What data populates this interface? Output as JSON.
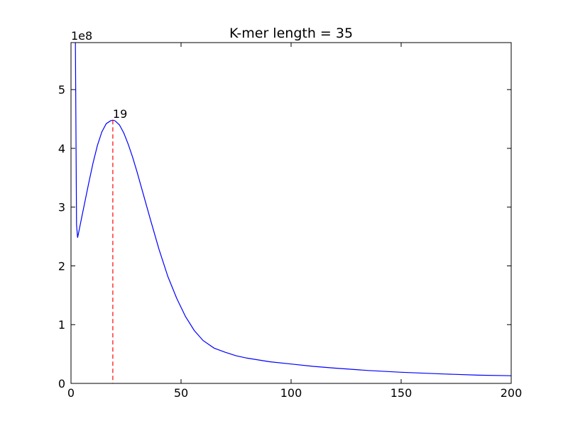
{
  "chart_data": {
    "type": "line",
    "title": "K-mer length = 35",
    "xlabel": "",
    "ylabel": "",
    "y_offset_label": "1e8",
    "xlim": [
      0,
      200
    ],
    "ylim": [
      0,
      5.8
    ],
    "xticks": [
      0,
      50,
      100,
      150,
      200
    ],
    "yticks": [
      0,
      1,
      2,
      3,
      4,
      5
    ],
    "grid": false,
    "series": [
      {
        "color": "#0000ff",
        "x": [
          2,
          2.5,
          3,
          5,
          8,
          10,
          12,
          14,
          16,
          18,
          19,
          20,
          22,
          24,
          26,
          28,
          30,
          33,
          36,
          40,
          44,
          48,
          52,
          56,
          60,
          65,
          70,
          75,
          80,
          90,
          100,
          110,
          120,
          135,
          150,
          170,
          185,
          200
        ],
        "y": [
          5.8,
          2.7,
          2.48,
          2.85,
          3.4,
          3.75,
          4.05,
          4.28,
          4.42,
          4.47,
          4.48,
          4.47,
          4.4,
          4.26,
          4.07,
          3.85,
          3.6,
          3.2,
          2.8,
          2.28,
          1.82,
          1.45,
          1.14,
          0.9,
          0.73,
          0.6,
          0.53,
          0.47,
          0.43,
          0.37,
          0.33,
          0.29,
          0.26,
          0.22,
          0.19,
          0.16,
          0.14,
          0.13
        ]
      }
    ],
    "marker": {
      "x": 19,
      "label": "19",
      "y": 4.48,
      "color": "#ff0000",
      "style": "dashed"
    }
  }
}
